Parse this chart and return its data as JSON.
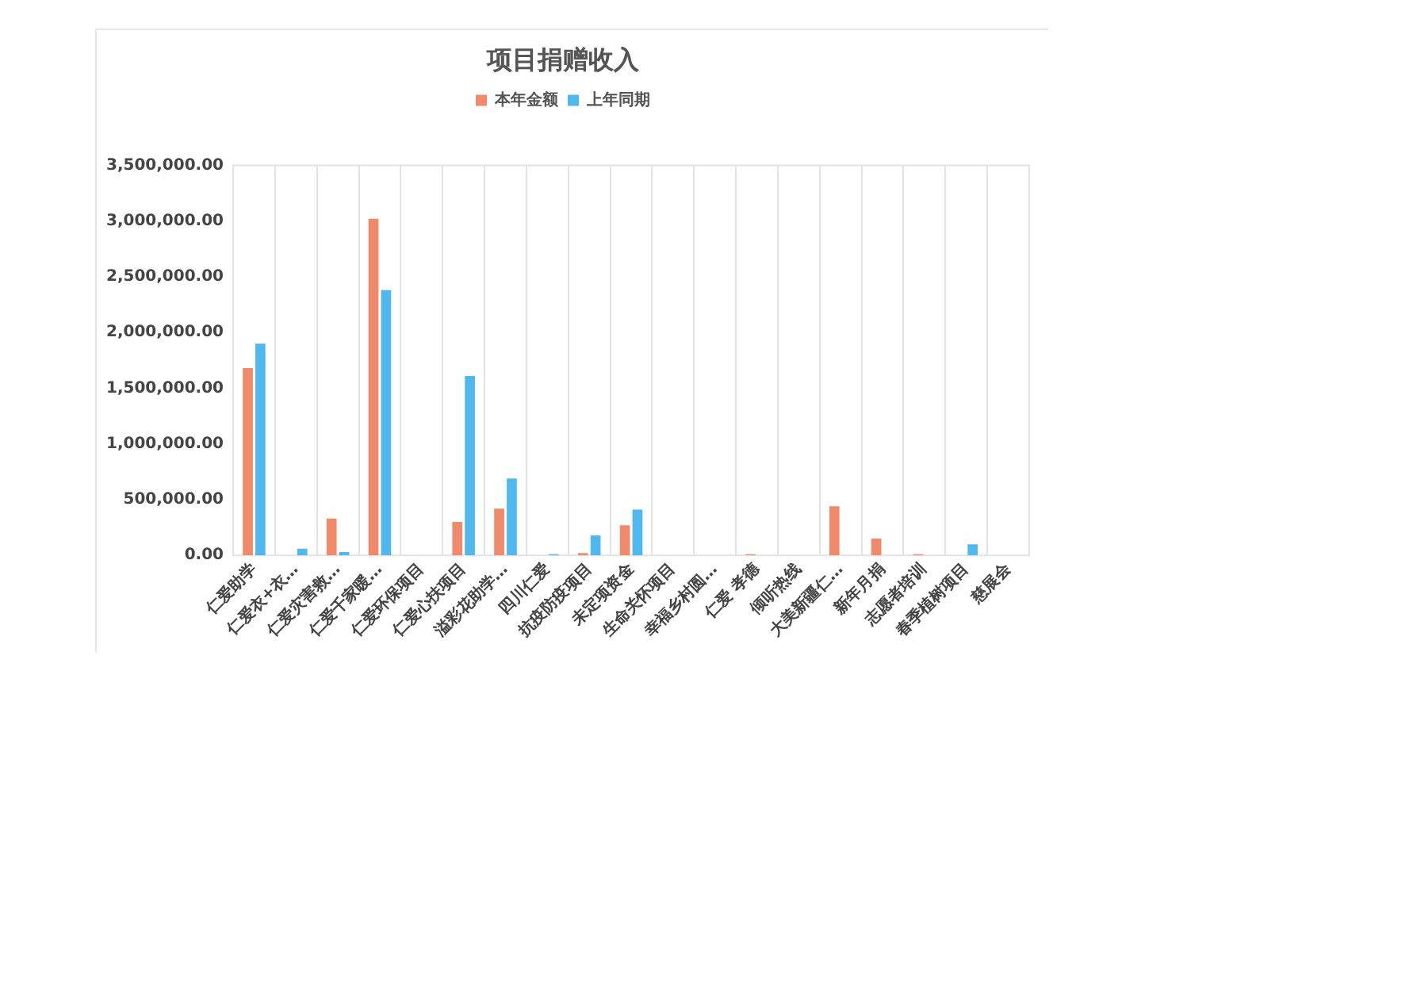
{
  "chart_data": {
    "type": "bar",
    "title": "项目捐赠收入",
    "categories": [
      "仁爱助学",
      "仁爱衣+衣…",
      "仁爱灾害救…",
      "仁爱千家暖…",
      "仁爱环保项目",
      "仁爱心扶项目",
      "溢彩花助学…",
      "四川仁爱",
      "抗疫防疫项目",
      "未定项资金",
      "生命关怀项目",
      "幸福乡村圆…",
      "仁爱 孝德",
      "倾听热线",
      "大美新疆仁…",
      "新年月捐",
      "志愿者培训",
      "春季植树项目",
      "慈展会"
    ],
    "series": [
      {
        "name": "本年金额",
        "color": "#f08a6a",
        "values": [
          1680000,
          0,
          330000,
          3020000,
          0,
          300000,
          420000,
          0,
          20000,
          270000,
          0,
          0,
          10000,
          0,
          440000,
          150000,
          10000,
          0,
          0
        ]
      },
      {
        "name": "上年同期",
        "color": "#4fb8ef",
        "values": [
          1900000,
          60000,
          30000,
          2380000,
          0,
          1610000,
          690000,
          10000,
          180000,
          410000,
          0,
          0,
          0,
          0,
          0,
          0,
          0,
          100000,
          0
        ]
      }
    ],
    "ylim": [
      0,
      3500000
    ],
    "yticks": [
      {
        "value": 0,
        "label": "0.00"
      },
      {
        "value": 500000,
        "label": "500,000.00"
      },
      {
        "value": 1000000,
        "label": "1,000,000.00"
      },
      {
        "value": 1500000,
        "label": "1,500,000.00"
      },
      {
        "value": 2000000,
        "label": "2,000,000.00"
      },
      {
        "value": 2500000,
        "label": "2,500,000.00"
      },
      {
        "value": 3000000,
        "label": "3,000,000.00"
      },
      {
        "value": 3500000,
        "label": "3,500,000.00"
      }
    ],
    "grid": "x",
    "legend": "top"
  }
}
